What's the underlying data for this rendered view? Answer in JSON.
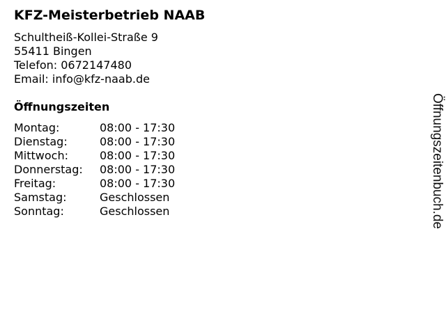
{
  "business": {
    "name": "KFZ-Meisterbetrieb NAAB",
    "street": "Schultheiß-Kollei-Straße 9",
    "city": "55411 Bingen",
    "phone": "Telefon: 0672147480",
    "email": "Email: info@kfz-naab.de"
  },
  "hours": {
    "heading": "Öffnungszeiten",
    "rows": [
      {
        "day": "Montag:",
        "time": "08:00 - 17:30"
      },
      {
        "day": "Dienstag:",
        "time": "08:00 - 17:30"
      },
      {
        "day": "Mittwoch:",
        "time": "08:00 - 17:30"
      },
      {
        "day": "Donnerstag:",
        "time": "08:00 - 17:30"
      },
      {
        "day": "Freitag:",
        "time": "08:00 - 17:30"
      },
      {
        "day": "Samstag:",
        "time": "Geschlossen"
      },
      {
        "day": "Sonntag:",
        "time": "Geschlossen"
      }
    ]
  },
  "watermark": "Öffnungszeitenbuch.de"
}
